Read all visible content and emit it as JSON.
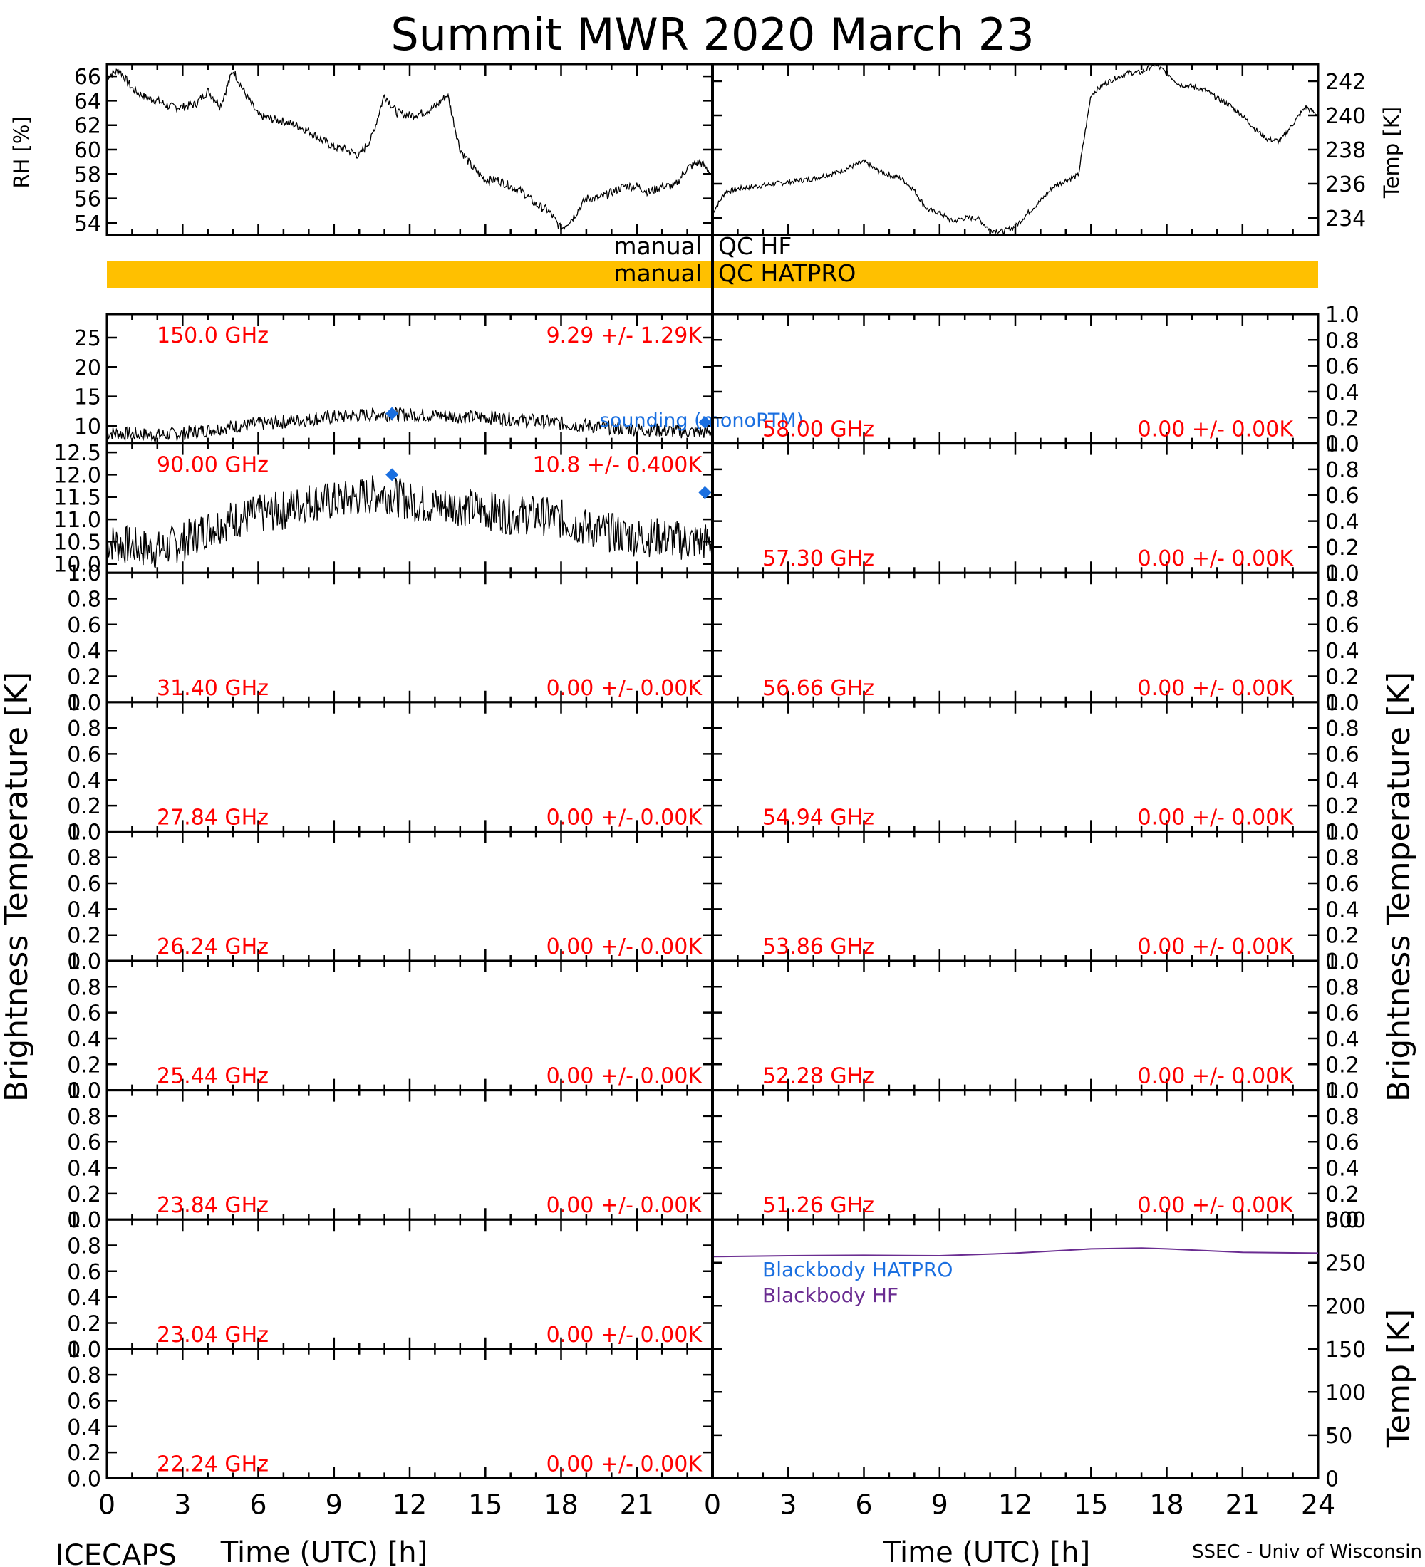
{
  "title": "Summit MWR 2020 March 23",
  "footer_left": "ICECAPS",
  "footer_right": "SSEC - Univ of Wisconsin",
  "colors": {
    "axis": "#000000",
    "trace": "#000000",
    "channel_label": "#ff0000",
    "sounding": "#1a6fe0",
    "qc_bar": "#ffc000",
    "bb_hatpro": "#1a6fe0",
    "bb_hf": "#6a2c91"
  },
  "top_left": {
    "ylabel": "RH [%]",
    "ylim": [
      53,
      67
    ],
    "yticks": [
      "54",
      "56",
      "58",
      "60",
      "62",
      "64",
      "66"
    ]
  },
  "top_right": {
    "ylabel": "Temp [K]",
    "ylim": [
      233,
      243
    ],
    "yticks": [
      "234",
      "236",
      "238",
      "240",
      "242"
    ]
  },
  "qc": {
    "hf_left": "manual",
    "hf_right": "QC HF",
    "hatpro_left": "manual",
    "hatpro_right": "QC HATPRO"
  },
  "side_labels": {
    "left": "Brightness Temperature [K]",
    "right": "Brightness Temperature [K]",
    "bb_temp": "Temp [K]"
  },
  "default_yticks": [
    "0.0",
    "0.2",
    "0.4",
    "0.6",
    "0.8",
    "1.0"
  ],
  "legend": {
    "sounding": "sounding (monoRTM)",
    "bb_hatpro": "Blackbody HATPRO",
    "bb_hf": "Blackbody HF"
  },
  "left_channels": [
    {
      "freq": "150.0 GHz",
      "stat": "9.29 +/- 1.29K",
      "yticks": [
        "10",
        "15",
        "20",
        "25"
      ],
      "ylim": [
        7,
        29
      ]
    },
    {
      "freq": "90.00 GHz",
      "stat": "10.8 +/- 0.400K",
      "yticks": [
        "10.0",
        "10.5",
        "11.0",
        "11.5",
        "12.0",
        "12.5"
      ],
      "ylim": [
        9.8,
        12.7
      ]
    },
    {
      "freq": "31.40 GHz",
      "stat": "0.00 +/- 0.00K"
    },
    {
      "freq": "27.84 GHz",
      "stat": "0.00 +/- 0.00K"
    },
    {
      "freq": "26.24 GHz",
      "stat": "0.00 +/- 0.00K"
    },
    {
      "freq": "25.44 GHz",
      "stat": "0.00 +/- 0.00K"
    },
    {
      "freq": "23.84 GHz",
      "stat": "0.00 +/- 0.00K"
    },
    {
      "freq": "23.04 GHz",
      "stat": "0.00 +/- 0.00K"
    },
    {
      "freq": "22.24 GHz",
      "stat": "0.00 +/- 0.00K"
    }
  ],
  "right_channels": [
    {
      "freq": "58.00 GHz",
      "stat": "0.00 +/- 0.00K"
    },
    {
      "freq": "57.30 GHz",
      "stat": "0.00 +/- 0.00K"
    },
    {
      "freq": "56.66 GHz",
      "stat": "0.00 +/- 0.00K"
    },
    {
      "freq": "54.94 GHz",
      "stat": "0.00 +/- 0.00K"
    },
    {
      "freq": "53.86 GHz",
      "stat": "0.00 +/- 0.00K"
    },
    {
      "freq": "52.28 GHz",
      "stat": "0.00 +/- 0.00K"
    },
    {
      "freq": "51.26 GHz",
      "stat": "0.00 +/- 0.00K"
    }
  ],
  "bb_panel": {
    "ylim": [
      0,
      300
    ],
    "yticks": [
      "0",
      "50",
      "100",
      "150",
      "200",
      "250",
      "300"
    ]
  },
  "xaxis": {
    "label": "Time (UTC) [h]",
    "left_ticks": [
      "0",
      "3",
      "6",
      "9",
      "12",
      "15",
      "18",
      "21"
    ],
    "right_ticks": [
      "0",
      "3",
      "6",
      "9",
      "12",
      "15",
      "18",
      "21",
      "24"
    ],
    "xlim": [
      0,
      24
    ]
  },
  "chart_data": {
    "type": "line",
    "x_units": "hours UTC",
    "series": [
      {
        "panel": "rh",
        "x": [
          0,
          0.5,
          1,
          1.5,
          2,
          2.5,
          3,
          3.5,
          4,
          4.5,
          5,
          5.5,
          6,
          6.5,
          7,
          7.5,
          8,
          8.5,
          9,
          9.5,
          10,
          10.5,
          11,
          11.5,
          12,
          12.5,
          13,
          13.5,
          14,
          14.5,
          15,
          15.5,
          16,
          16.5,
          17,
          17.5,
          18,
          18.5,
          19,
          19.5,
          20,
          20.5,
          21,
          21.5,
          22,
          22.5,
          23,
          23.5,
          23.9
        ],
        "y": [
          66,
          66.5,
          65,
          64.3,
          64,
          63.5,
          63.5,
          63.7,
          64.8,
          63.6,
          66.5,
          64.5,
          62.8,
          62.5,
          62.3,
          62,
          61.5,
          60.8,
          60.2,
          60,
          59.5,
          61,
          64.5,
          63,
          62.8,
          63,
          63.5,
          64.5,
          60,
          58.5,
          57.5,
          57.5,
          57,
          56.5,
          55.5,
          55,
          53.5,
          54.5,
          56,
          56,
          56.5,
          57,
          57,
          56.5,
          57,
          57,
          58.5,
          59,
          58.2
        ]
      },
      {
        "panel": "temp",
        "x": [
          0,
          0.5,
          1,
          1.5,
          2,
          2.5,
          3,
          3.5,
          4,
          4.5,
          5,
          5.5,
          6,
          6.5,
          7,
          7.5,
          8,
          8.5,
          9,
          9.5,
          10,
          10.5,
          11,
          11.5,
          12,
          12.5,
          13,
          13.5,
          14,
          14.5,
          15,
          15.5,
          16,
          16.5,
          17,
          17.5,
          18,
          18.5,
          19,
          19.5,
          20,
          20.5,
          21,
          21.5,
          22,
          22.5,
          23,
          23.5,
          24
        ],
        "y": [
          234.3,
          235.5,
          235.7,
          235.8,
          235.9,
          236,
          236.1,
          236.2,
          236.3,
          236.5,
          236.7,
          237,
          237.3,
          236.8,
          236.5,
          236.3,
          235.6,
          234.5,
          234.3,
          233.8,
          234,
          234,
          233.3,
          233.2,
          233.5,
          234.3,
          235,
          235.8,
          236.2,
          236.5,
          241.2,
          241.8,
          242.2,
          242.5,
          242.5,
          243,
          242.5,
          241.8,
          241.7,
          241.5,
          241,
          240.6,
          240,
          239.2,
          238.6,
          238.5,
          239.5,
          240.5,
          240
        ]
      },
      {
        "panel": "150.0 GHz",
        "x": [
          0,
          1,
          2,
          3,
          4,
          5,
          6,
          7,
          8,
          9,
          10,
          11,
          12,
          13,
          14,
          15,
          16,
          17,
          18,
          19,
          20,
          21,
          22,
          23,
          24
        ],
        "y": [
          8.8,
          8.6,
          8.4,
          8.7,
          9.3,
          9.9,
          10.3,
          10.7,
          11.1,
          11.5,
          11.8,
          12,
          11.9,
          11.8,
          11.6,
          11.5,
          11.2,
          10.8,
          10.4,
          10,
          9.7,
          9.4,
          9.2,
          9,
          8.9
        ]
      },
      {
        "panel": "90.00 GHz",
        "x": [
          0,
          1,
          2,
          3,
          4,
          5,
          6,
          7,
          8,
          9,
          10,
          11,
          12,
          13,
          14,
          15,
          16,
          17,
          18,
          19,
          20,
          21,
          22,
          23,
          24
        ],
        "y": [
          10.5,
          10.4,
          10.3,
          10.5,
          10.8,
          11,
          11.1,
          11.2,
          11.4,
          11.4,
          11.5,
          11.6,
          11.4,
          11.3,
          11.3,
          11.2,
          11.1,
          11.1,
          11,
          10.8,
          10.7,
          10.6,
          10.6,
          10.5,
          10.5
        ]
      },
      {
        "panel": "Blackbody HF",
        "x": [
          0,
          3,
          6,
          9,
          12,
          15,
          17,
          18,
          21,
          24
        ],
        "y": [
          257,
          258,
          258.5,
          258,
          261,
          266,
          267,
          266,
          262,
          261
        ]
      }
    ],
    "sounding_points": [
      {
        "panel": "150.0 GHz",
        "x": 11.3,
        "y": 12.1
      },
      {
        "panel": "150.0 GHz",
        "x": 23.7,
        "y": 10.6
      },
      {
        "panel": "90.00 GHz",
        "x": 11.3,
        "y": 12.0
      },
      {
        "panel": "90.00 GHz",
        "x": 23.7,
        "y": 11.6
      }
    ]
  }
}
